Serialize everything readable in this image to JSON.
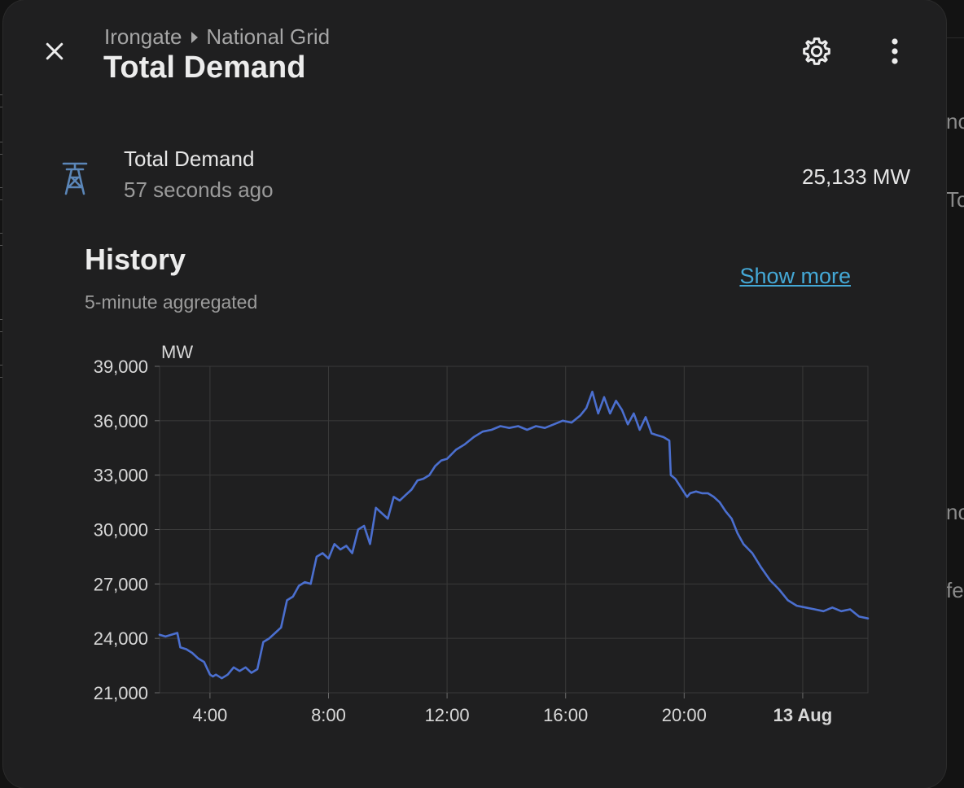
{
  "background": {
    "right_edge_fragments": [
      "nc",
      "To",
      "nc",
      "fer"
    ]
  },
  "dialog": {
    "breadcrumb": {
      "parent": "Irongate",
      "current": "National Grid"
    },
    "title": "Total Demand",
    "icons": {
      "close": "close-icon",
      "settings": "gear-icon",
      "more": "more-vertical-icon",
      "entity": "transmission-tower-icon"
    }
  },
  "entity": {
    "name": "Total Demand",
    "last_changed": "57 seconds ago",
    "state": "25,133 MW"
  },
  "history": {
    "title": "History",
    "subtitle": "5-minute aggregated",
    "show_more": "Show more"
  },
  "colors": {
    "dialog_bg": "#1f1f20",
    "line": "#4b6fcf",
    "link": "#44a8d6",
    "icon": "#5b86b8"
  },
  "chart_data": {
    "type": "line",
    "ylabel": "MW",
    "ylim": [
      21000,
      39000
    ],
    "yticks": [
      21000,
      24000,
      27000,
      30000,
      33000,
      36000,
      39000
    ],
    "ytick_labels": [
      "21,000",
      "24,000",
      "27,000",
      "30,000",
      "33,000",
      "36,000",
      "39,000"
    ],
    "xlim": [
      2.3,
      26.2
    ],
    "xticks": [
      4,
      8,
      12,
      16,
      20,
      24
    ],
    "xtick_labels": [
      "4:00",
      "8:00",
      "12:00",
      "16:00",
      "20:00",
      "13 Aug"
    ],
    "xtick_bold": [
      false,
      false,
      false,
      false,
      false,
      true
    ],
    "grid": true,
    "series": [
      {
        "color": "#4b6fcf",
        "x": [
          2.3,
          2.5,
          2.9,
          3.0,
          3.2,
          3.4,
          3.6,
          3.8,
          4.0,
          4.1,
          4.2,
          4.4,
          4.6,
          4.8,
          5.0,
          5.2,
          5.4,
          5.6,
          5.8,
          6.0,
          6.2,
          6.4,
          6.6,
          6.8,
          7.0,
          7.2,
          7.4,
          7.6,
          7.8,
          8.0,
          8.2,
          8.4,
          8.6,
          8.8,
          9.0,
          9.2,
          9.4,
          9.6,
          9.8,
          10.0,
          10.2,
          10.4,
          10.6,
          10.8,
          11.0,
          11.2,
          11.4,
          11.6,
          11.8,
          12.0,
          12.3,
          12.6,
          12.9,
          13.2,
          13.5,
          13.8,
          14.1,
          14.4,
          14.7,
          15.0,
          15.3,
          15.6,
          15.9,
          16.2,
          16.5,
          16.7,
          16.9,
          17.1,
          17.3,
          17.5,
          17.7,
          17.9,
          18.1,
          18.3,
          18.5,
          18.7,
          18.9,
          19.1,
          19.3,
          19.5,
          19.55,
          19.7,
          19.9,
          20.1,
          20.2,
          20.4,
          20.6,
          20.8,
          21.0,
          21.2,
          21.4,
          21.6,
          21.8,
          22.0,
          22.3,
          22.6,
          22.9,
          23.2,
          23.5,
          23.8,
          24.1,
          24.4,
          24.7,
          25.0,
          25.3,
          25.6,
          25.9,
          26.2
        ],
        "y": [
          24200,
          24100,
          24300,
          23500,
          23400,
          23200,
          22900,
          22700,
          22000,
          21900,
          22000,
          21800,
          22000,
          22400,
          22200,
          22400,
          22100,
          22300,
          23800,
          24000,
          24300,
          24600,
          26100,
          26300,
          26900,
          27100,
          27000,
          28500,
          28700,
          28400,
          29200,
          28900,
          29100,
          28700,
          30000,
          30200,
          29200,
          31200,
          30900,
          30600,
          31800,
          31600,
          31900,
          32200,
          32700,
          32800,
          33000,
          33500,
          33800,
          33900,
          34400,
          34700,
          35100,
          35400,
          35500,
          35700,
          35600,
          35700,
          35500,
          35700,
          35600,
          35800,
          36000,
          35900,
          36300,
          36700,
          37600,
          36400,
          37300,
          36400,
          37100,
          36600,
          35800,
          36400,
          35500,
          36200,
          35300,
          35200,
          35100,
          34900,
          33000,
          32800,
          32300,
          31800,
          32000,
          32100,
          32000,
          32000,
          31800,
          31500,
          31000,
          30600,
          29800,
          29200,
          28700,
          27900,
          27200,
          26700,
          26100,
          25800,
          25700,
          25600,
          25500,
          25700,
          25500,
          25600,
          25200,
          25100
        ]
      }
    ]
  }
}
